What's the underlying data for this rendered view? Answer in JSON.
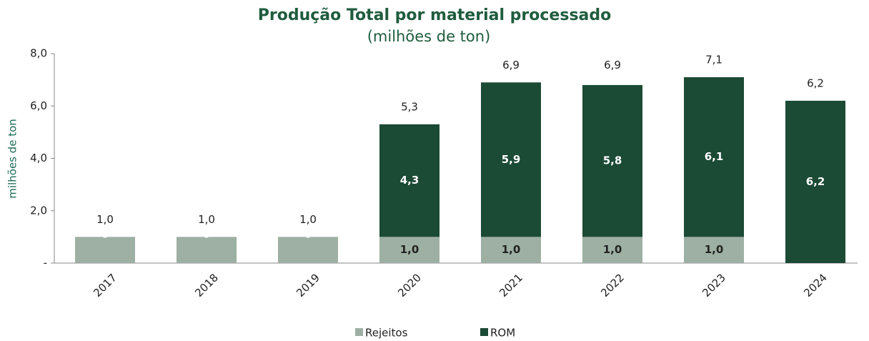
{
  "chart_data": {
    "type": "stacked_bar",
    "title": "Produção Total por material processado",
    "subtitle": "(milhões de ton)",
    "y_label": "milhões de ton",
    "categories": [
      "2017",
      "2018",
      "2019",
      "2020",
      "2021",
      "2022",
      "2023",
      "2024"
    ],
    "series": [
      {
        "name": "Rejeitos",
        "color": "#9db0a3",
        "label_color": "#222222",
        "values": [
          1.0,
          1.0,
          1.0,
          1.0,
          1.0,
          1.0,
          1.0,
          null
        ],
        "value_labels": [
          null,
          null,
          null,
          "1,0",
          "1,0",
          "1,0",
          "1,0",
          null
        ]
      },
      {
        "name": "ROM",
        "color": "#1b4a35",
        "label_color": "#ffffff",
        "values": [
          0,
          0,
          0,
          4.3,
          5.9,
          5.8,
          6.1,
          6.2
        ],
        "value_labels": [
          "-",
          "-",
          "-",
          "4,3",
          "5,9",
          "5,8",
          "6,1",
          "6,2"
        ]
      }
    ],
    "totals": [
      1.0,
      1.0,
      1.0,
      5.3,
      6.9,
      6.9,
      7.1,
      6.2
    ],
    "total_labels": [
      "1,0",
      "1,0",
      "1,0",
      "5,3",
      "6,9",
      "6,9",
      "7,1",
      "6,2"
    ],
    "ylim": [
      0,
      8
    ],
    "yticks": [
      {
        "value": 0,
        "label": "-"
      },
      {
        "value": 2,
        "label": "2,0"
      },
      {
        "value": 4,
        "label": "4,0"
      },
      {
        "value": 6,
        "label": "6,0"
      },
      {
        "value": 8,
        "label": "8,0"
      }
    ],
    "legend": "bottom"
  }
}
